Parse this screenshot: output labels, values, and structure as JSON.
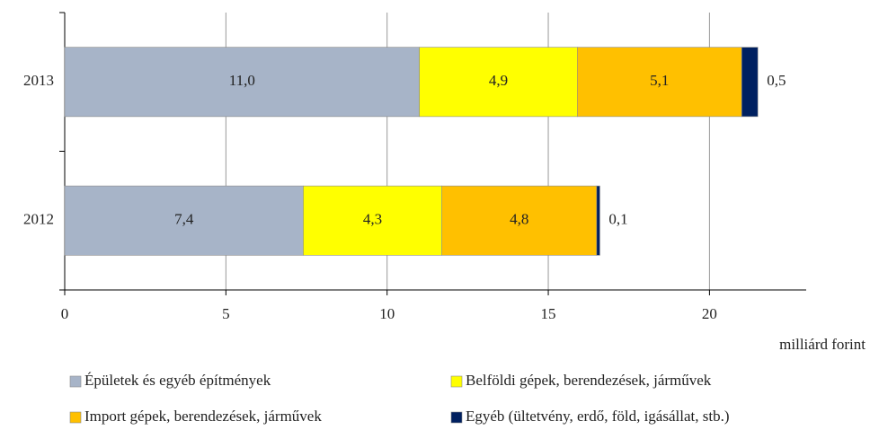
{
  "chart_data": {
    "type": "stacked-barh",
    "x_label": "milliárd forint",
    "categories": [
      "2013",
      "2012"
    ],
    "series": [
      {
        "name": "Épületek és egyéb építmények",
        "color": "#a7b4c8",
        "values": [
          11.0,
          7.4
        ],
        "value_labels": [
          "11,0",
          "7,4"
        ]
      },
      {
        "name": "Belföldi gépek, berendezések, járművek",
        "color": "#ffff00",
        "values": [
          4.9,
          4.3
        ],
        "value_labels": [
          "4,9",
          "4,3"
        ]
      },
      {
        "name": "Import gépek, berendezések, járművek",
        "color": "#ffc000",
        "values": [
          5.1,
          4.8
        ],
        "value_labels": [
          "5,1",
          "4,8"
        ]
      },
      {
        "name": "Egyéb (ültetvény, erdő, föld, igásállat, stb.)",
        "color": "#002060",
        "values": [
          0.5,
          0.1
        ],
        "value_labels": [
          "0,5",
          "0,1"
        ]
      }
    ],
    "xlim": [
      0,
      23
    ],
    "xticks": [
      0,
      5,
      10,
      15,
      20
    ],
    "grid": true
  }
}
